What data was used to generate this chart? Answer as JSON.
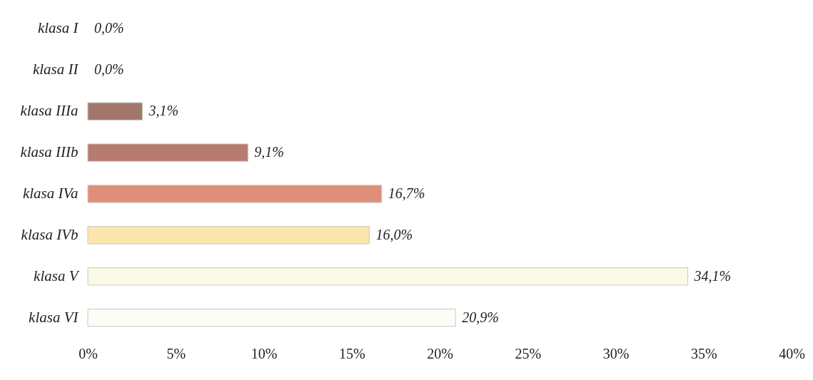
{
  "chart_data": {
    "type": "bar",
    "orientation": "horizontal",
    "categories": [
      "klasa I",
      "klasa II",
      "klasa IIIa",
      "klasa IIIb",
      "klasa IVa",
      "klasa IVb",
      "klasa V",
      "klasa VI"
    ],
    "values": [
      0.0,
      0.0,
      3.1,
      9.1,
      16.7,
      16.0,
      34.1,
      20.9
    ],
    "value_labels": [
      "0,0%",
      "0,0%",
      "3,1%",
      "9,1%",
      "16,7%",
      "16,0%",
      "34,1%",
      "20,9%"
    ],
    "colors": [
      null,
      null,
      "#a2776b",
      "#b87b70",
      "#e08e79",
      "#fce6ae",
      "#fbfae6",
      "#fcfcf7"
    ],
    "xlim": [
      0,
      40
    ],
    "xticks": [
      {
        "value": 0,
        "label": "0%"
      },
      {
        "value": 5,
        "label": "5%"
      },
      {
        "value": 10,
        "label": "10%"
      },
      {
        "value": 15,
        "label": "15%"
      },
      {
        "value": 20,
        "label": "20%"
      },
      {
        "value": 25,
        "label": "25%"
      },
      {
        "value": 30,
        "label": "30%"
      },
      {
        "value": 35,
        "label": "35%"
      },
      {
        "value": 40,
        "label": "40%"
      }
    ]
  }
}
